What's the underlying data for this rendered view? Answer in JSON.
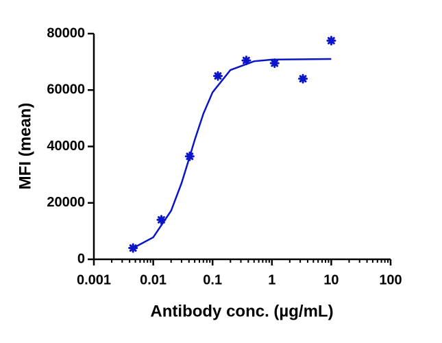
{
  "chart_data": {
    "type": "scatter",
    "xlabel": "Antibody conc. (µg/mL)",
    "ylabel": "MFI (mean)",
    "xscale": "log",
    "xlim": [
      0.001,
      100
    ],
    "xticks": [
      0.001,
      0.01,
      0.1,
      1,
      10,
      100
    ],
    "xminorticks": [
      0.002,
      0.003,
      0.004,
      0.005,
      0.006,
      0.007,
      0.008,
      0.009,
      0.02,
      0.03,
      0.04,
      0.05,
      0.06,
      0.07,
      0.08,
      0.09,
      0.2,
      0.3,
      0.4,
      0.5,
      0.6,
      0.7,
      0.8,
      0.9,
      2,
      3,
      4,
      5,
      6,
      7,
      8,
      9,
      20,
      30,
      40,
      50,
      60,
      70,
      80,
      90
    ],
    "ylim": [
      0,
      80000
    ],
    "yticks": [
      0,
      20000,
      40000,
      60000,
      80000
    ],
    "color": "#0a14c8",
    "x": [
      0.00457,
      0.0137,
      0.0412,
      0.123,
      0.37,
      1.11,
      3.33,
      10
    ],
    "values": [
      4000,
      14000,
      36500,
      65000,
      70500,
      69500,
      64000,
      77500
    ],
    "fit": {
      "x": [
        0.005,
        0.01,
        0.02,
        0.03,
        0.04,
        0.05,
        0.07,
        0.1,
        0.2,
        0.5,
        1,
        10
      ],
      "values": [
        4400,
        7800,
        17200,
        27000,
        35500,
        42300,
        51600,
        59200,
        67100,
        70200,
        70800,
        71000
      ]
    }
  }
}
